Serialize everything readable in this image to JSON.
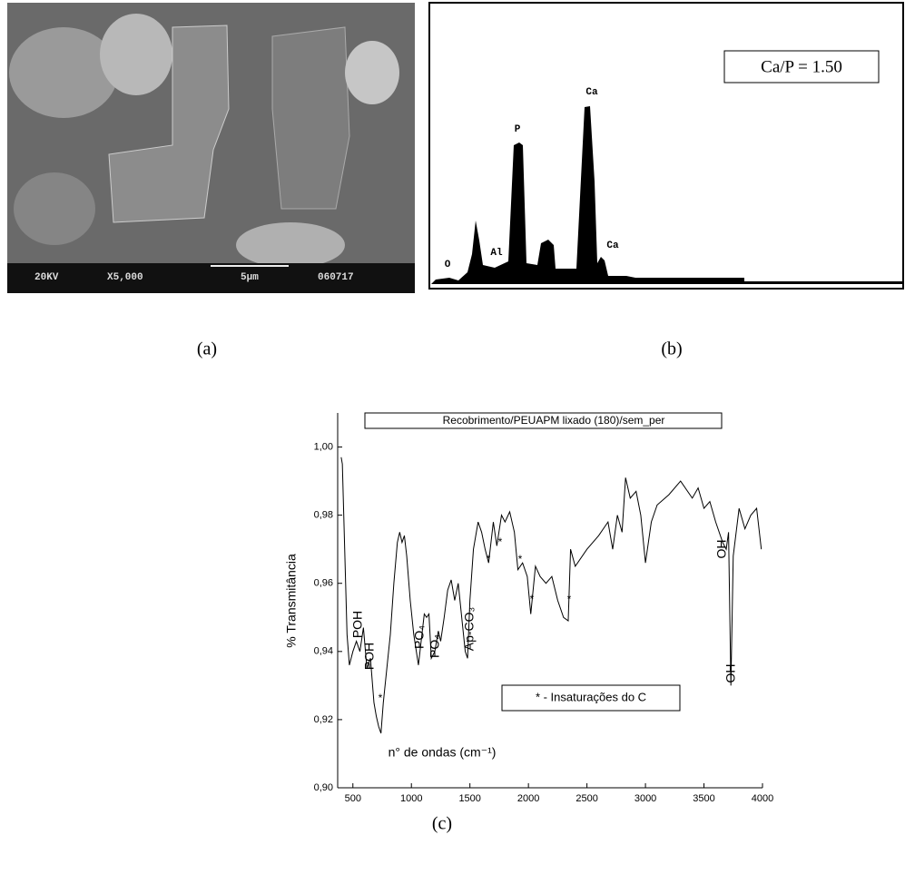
{
  "panel_a": {
    "scale_bar": [
      "20KV",
      "X5,000",
      "5µm",
      "060717"
    ]
  },
  "panel_b": {
    "ratio_label": "Ca/P = 1.50",
    "peak_labels": [
      "O",
      "Al",
      "P",
      "Ca",
      "Ca"
    ]
  },
  "captions": [
    "(a)",
    "(b)",
    "(c)"
  ],
  "chart_data": {
    "type": "line",
    "title": "Recobrimento/PEUAPM lixado (180)/sem_per",
    "x_label": "n° de ondas (cm⁻¹)",
    "y_label": "% Transmitância",
    "annotations": [
      "POH",
      "POH",
      "*",
      "PO₄",
      "PO₄",
      "Ap-CO₃",
      "*",
      "*",
      "*",
      "*",
      "*",
      "OH",
      "OH"
    ],
    "note": "* - Insaturações do C",
    "x": [
      400,
      410,
      430,
      450,
      470,
      500,
      530,
      560,
      590,
      620,
      650,
      680,
      700,
      720,
      740,
      760,
      790,
      820,
      850,
      880,
      900,
      920,
      940,
      960,
      990,
      1020,
      1060,
      1090,
      1110,
      1130,
      1150,
      1170,
      1200,
      1230,
      1250,
      1280,
      1310,
      1340,
      1370,
      1400,
      1430,
      1460,
      1480,
      1500,
      1530,
      1570,
      1600,
      1630,
      1660,
      1700,
      1730,
      1770,
      1800,
      1840,
      1880,
      1910,
      1950,
      1990,
      2020,
      2060,
      2100,
      2150,
      2200,
      2250,
      2300,
      2340,
      2360,
      2400,
      2500,
      2600,
      2680,
      2720,
      2760,
      2800,
      2830,
      2870,
      2920,
      2960,
      3000,
      3050,
      3100,
      3200,
      3300,
      3400,
      3450,
      3500,
      3550,
      3600,
      3660,
      3690,
      3710,
      3730,
      3750,
      3800,
      3850,
      3900,
      3950,
      3990
    ],
    "series": [
      {
        "color": "#000000",
        "values": [
          0.997,
          0.995,
          0.97,
          0.945,
          0.936,
          0.94,
          0.943,
          0.94,
          0.947,
          0.935,
          0.938,
          0.925,
          0.921,
          0.918,
          0.916,
          0.925,
          0.935,
          0.945,
          0.96,
          0.972,
          0.975,
          0.972,
          0.974,
          0.968,
          0.955,
          0.945,
          0.936,
          0.945,
          0.951,
          0.95,
          0.951,
          0.938,
          0.94,
          0.946,
          0.943,
          0.95,
          0.958,
          0.961,
          0.955,
          0.96,
          0.95,
          0.94,
          0.938,
          0.955,
          0.97,
          0.978,
          0.975,
          0.97,
          0.966,
          0.978,
          0.971,
          0.98,
          0.978,
          0.981,
          0.975,
          0.964,
          0.966,
          0.962,
          0.951,
          0.965,
          0.962,
          0.96,
          0.962,
          0.955,
          0.95,
          0.949,
          0.97,
          0.965,
          0.97,
          0.974,
          0.978,
          0.97,
          0.98,
          0.975,
          0.991,
          0.985,
          0.987,
          0.98,
          0.966,
          0.978,
          0.983,
          0.986,
          0.99,
          0.985,
          0.988,
          0.982,
          0.984,
          0.978,
          0.972,
          0.97,
          0.975,
          0.93,
          0.968,
          0.982,
          0.976,
          0.98,
          0.982,
          0.97
        ]
      }
    ],
    "xlim": [
      370,
      4000
    ],
    "ylim": [
      0.9,
      1.01
    ],
    "xticks": [
      500,
      1000,
      1500,
      2000,
      2500,
      3000,
      3500,
      4000
    ],
    "yticks": [
      {
        "value": 0.9,
        "label": "0,90"
      },
      {
        "value": 0.92,
        "label": "0,92"
      },
      {
        "value": 0.94,
        "label": "0,94"
      },
      {
        "value": 0.96,
        "label": "0,96"
      },
      {
        "value": 0.98,
        "label": "0,98"
      },
      {
        "value": 1.0,
        "label": "1,00"
      }
    ]
  }
}
